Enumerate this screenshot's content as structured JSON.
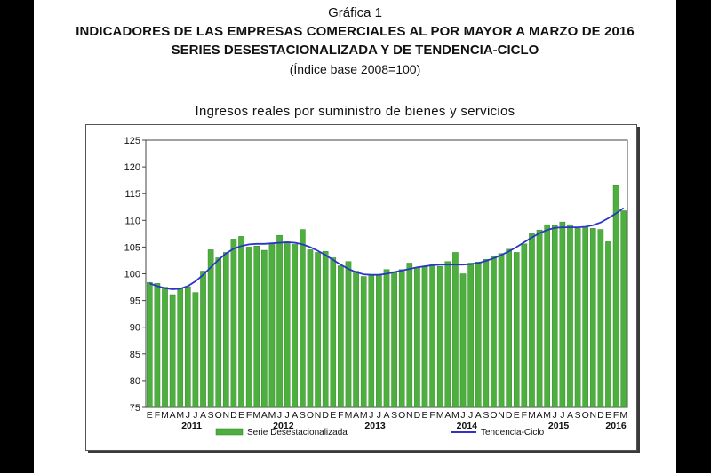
{
  "header": {
    "figure": "Gráfica 1",
    "title": "INDICADORES DE LAS EMPRESAS COMERCIALES AL POR MAYOR A MARZO DE 2016",
    "subtitle": "SERIES DESESTACIONALIZADA Y DE TENDENCIA-CICLO",
    "base_note": "(Índice base 2008=100)"
  },
  "chart_data": {
    "type": "bar",
    "title": "Ingresos reales por suministro de bienes y servicios",
    "xlabel": "",
    "ylabel": "",
    "ylim": [
      75,
      125
    ],
    "yticks": [
      75,
      80,
      85,
      90,
      95,
      100,
      105,
      110,
      115,
      120,
      125
    ],
    "grid": false,
    "legend_position": "bottom",
    "month_labels": [
      "E",
      "F",
      "M",
      "A",
      "M",
      "J",
      "J",
      "A",
      "S",
      "O",
      "N",
      "D"
    ],
    "year_labels": [
      "2011",
      "2012",
      "2013",
      "2014",
      "2015",
      "2016"
    ],
    "categories": [
      "2011-01",
      "2011-02",
      "2011-03",
      "2011-04",
      "2011-05",
      "2011-06",
      "2011-07",
      "2011-08",
      "2011-09",
      "2011-10",
      "2011-11",
      "2011-12",
      "2012-01",
      "2012-02",
      "2012-03",
      "2012-04",
      "2012-05",
      "2012-06",
      "2012-07",
      "2012-08",
      "2012-09",
      "2012-10",
      "2012-11",
      "2012-12",
      "2013-01",
      "2013-02",
      "2013-03",
      "2013-04",
      "2013-05",
      "2013-06",
      "2013-07",
      "2013-08",
      "2013-09",
      "2013-10",
      "2013-11",
      "2013-12",
      "2014-01",
      "2014-02",
      "2014-03",
      "2014-04",
      "2014-05",
      "2014-06",
      "2014-07",
      "2014-08",
      "2014-09",
      "2014-10",
      "2014-11",
      "2014-12",
      "2015-01",
      "2015-02",
      "2015-03",
      "2015-04",
      "2015-05",
      "2015-06",
      "2015-07",
      "2015-08",
      "2015-09",
      "2015-10",
      "2015-11",
      "2015-12",
      "2016-01",
      "2016-02",
      "2016-03"
    ],
    "series": [
      {
        "name": "Serie Desestacionalizada",
        "type": "bar",
        "color": "#4caf3e",
        "values": [
          98.4,
          98.2,
          97.5,
          96.1,
          97.3,
          97.6,
          96.5,
          100.5,
          104.5,
          103.0,
          104.0,
          106.5,
          107.0,
          105.0,
          105.2,
          104.4,
          105.5,
          107.2,
          106.0,
          105.5,
          108.3,
          104.5,
          104.0,
          104.2,
          103.0,
          101.5,
          102.3,
          100.5,
          99.5,
          99.8,
          99.8,
          100.8,
          100.4,
          100.8,
          102.0,
          101.2,
          101.3,
          101.8,
          101.4,
          102.3,
          104.0,
          100.0,
          102.0,
          102.2,
          102.7,
          103.3,
          103.8,
          104.6,
          104.0,
          105.6,
          107.5,
          108.2,
          109.2,
          109.0,
          109.7,
          109.2,
          108.5,
          108.7,
          108.5,
          108.3,
          106.0,
          116.5,
          111.8
        ]
      },
      {
        "name": "Tendencia-Ciclo",
        "type": "line",
        "color": "#2b35c9",
        "values": [
          98.2,
          97.7,
          97.3,
          97.1,
          97.2,
          97.7,
          98.6,
          99.8,
          101.2,
          102.6,
          103.8,
          104.7,
          105.2,
          105.5,
          105.6,
          105.6,
          105.7,
          105.8,
          105.9,
          105.8,
          105.5,
          105.0,
          104.3,
          103.5,
          102.6,
          101.7,
          100.9,
          100.3,
          99.9,
          99.8,
          99.8,
          100.0,
          100.3,
          100.6,
          100.9,
          101.2,
          101.4,
          101.6,
          101.7,
          101.7,
          101.7,
          101.7,
          101.8,
          102.0,
          102.4,
          102.9,
          103.5,
          104.2,
          105.0,
          105.9,
          106.8,
          107.6,
          108.2,
          108.6,
          108.7,
          108.7,
          108.7,
          108.8,
          109.1,
          109.6,
          110.4,
          111.3,
          112.3
        ]
      }
    ]
  }
}
